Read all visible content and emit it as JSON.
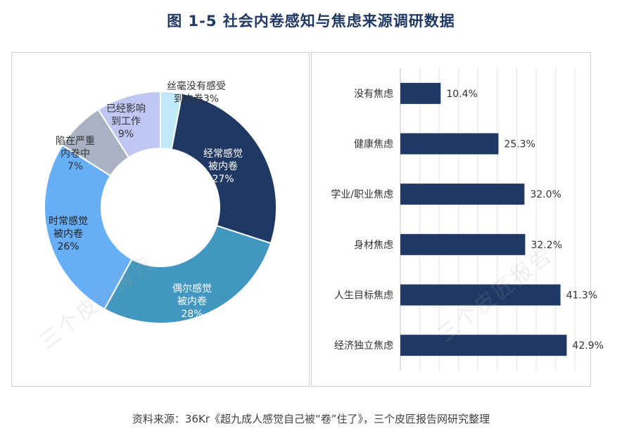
{
  "title": "图 1-5 社会内卷感知与焦虑来源调研数据",
  "source": "资料来源：36Kr《超九成人感觉自己被“卷”住了》，三个皮匠报告网研究整理",
  "watermark": "三个皮匠报告",
  "chart_data": [
    {
      "type": "pie",
      "slices": [
        {
          "label_lines": [
            "丝毫没有感受",
            "到内卷3%"
          ],
          "value": 3,
          "color": "#bfe9f9",
          "text_color": "#333333"
        },
        {
          "label_lines": [
            "经常感觉",
            "被内卷",
            "27%"
          ],
          "value": 27,
          "color": "#1f3864",
          "text_color": "#ffffff"
        },
        {
          "label_lines": [
            "偶尔感觉",
            "被内卷",
            "28%"
          ],
          "value": 28,
          "color": "#4197bf",
          "text_color": "#ffffff"
        },
        {
          "label_lines": [
            "时常感觉",
            "被内卷",
            "26%"
          ],
          "value": 26,
          "color": "#66aef5",
          "text_color": "#222222"
        },
        {
          "label_lines": [
            "陷在严重",
            "内卷中",
            "7%"
          ],
          "value": 7,
          "color": "#a9b2c2",
          "text_color": "#333333"
        },
        {
          "label_lines": [
            "已经影响",
            "到工作",
            "9%"
          ],
          "value": 9,
          "color": "#c0c6f2",
          "text_color": "#333333"
        }
      ]
    },
    {
      "type": "bar",
      "orientation": "horizontal",
      "categories": [
        "没有焦虑",
        "健康焦虑",
        "学业/职业焦虑",
        "身材焦虑",
        "人生目标焦虑",
        "经济独立焦虑"
      ],
      "values": [
        10.4,
        25.3,
        32.0,
        32.2,
        41.3,
        42.9
      ],
      "value_labels": [
        "10.4%",
        "25.3%",
        "32.0%",
        "32.2%",
        "41.3%",
        "42.9%"
      ],
      "xlim": [
        0,
        45
      ],
      "grid": true,
      "bar_color": "#1f3864"
    }
  ]
}
